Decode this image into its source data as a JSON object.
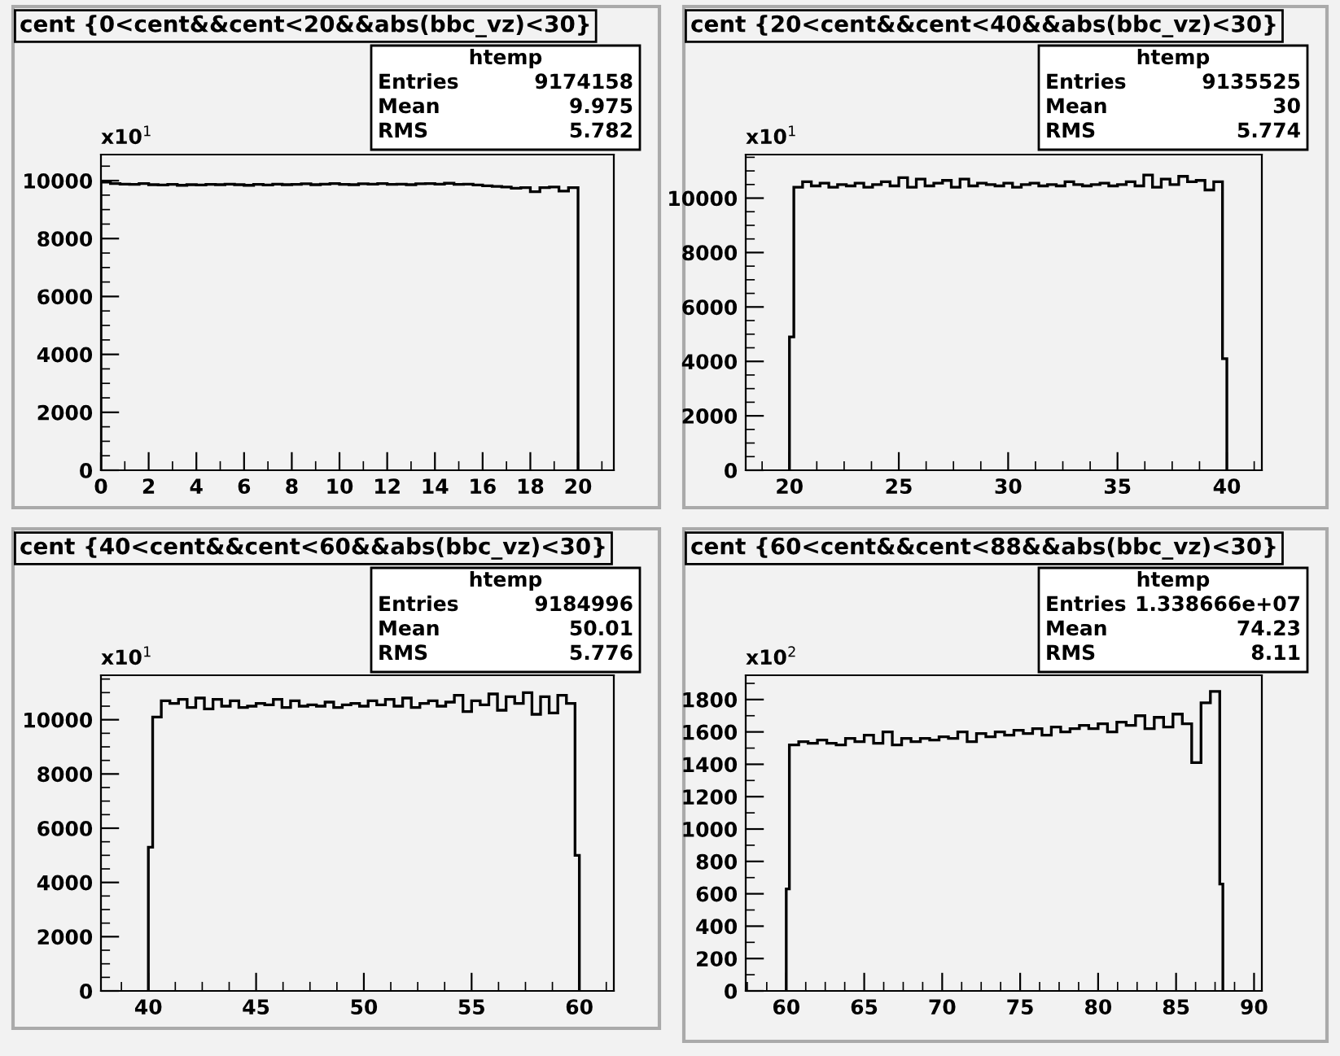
{
  "chart_data": [
    {
      "type": "histogram",
      "title": "cent {0<cent&&cent<20&&abs(bbc_vz)<30}",
      "annotations": [
        "x10$^{1}$",
        "htemp",
        "Entries 9174158",
        "Mean 9.975",
        "RMS 5.782"
      ],
      "color": "#000000",
      "bins": [
        0,
        0.4,
        0.8,
        1.2,
        1.6,
        2,
        2.4,
        2.8,
        3.2,
        3.6,
        4,
        4.4,
        4.8,
        5.2,
        5.6,
        6,
        6.4,
        6.8,
        7.2,
        7.6,
        8,
        8.4,
        8.8,
        9.2,
        9.6,
        10,
        10.4,
        10.8,
        11.2,
        11.6,
        12,
        12.4,
        12.8,
        13.2,
        13.6,
        14,
        14.4,
        14.8,
        15.2,
        15.6,
        16,
        16.4,
        16.8,
        17.2,
        17.6,
        18,
        18.4,
        18.8,
        19.2,
        19.6,
        20
      ],
      "values": [
        9950,
        9900,
        9880,
        9870,
        9900,
        9860,
        9850,
        9870,
        9840,
        9860,
        9850,
        9870,
        9860,
        9880,
        9860,
        9840,
        9870,
        9850,
        9880,
        9860,
        9870,
        9890,
        9860,
        9880,
        9900,
        9870,
        9860,
        9890,
        9880,
        9900,
        9870,
        9880,
        9860,
        9890,
        9900,
        9880,
        9910,
        9870,
        9880,
        9850,
        9820,
        9800,
        9780,
        9740,
        9760,
        9620,
        9760,
        9780,
        9640,
        9760
      ],
      "xlim": [
        0,
        21.5
      ],
      "ylim": [
        0,
        10900
      ],
      "xticks": [
        0,
        2,
        4,
        6,
        8,
        10,
        12,
        14,
        16,
        18,
        20
      ],
      "yticks": [
        0,
        2000,
        4000,
        6000,
        8000,
        10000
      ]
    },
    {
      "type": "histogram",
      "title": "cent {20<cent&&cent<40&&abs(bbc_vz)<30}",
      "annotations": [
        "x10$^{1}$",
        "htemp",
        "Entries 9135525",
        "Mean 30",
        "RMS 5.774"
      ],
      "color": "#000000",
      "bins": [
        20,
        20.2,
        20.6,
        21.0,
        21.4,
        21.8,
        22.2,
        22.6,
        23.0,
        23.4,
        23.8,
        24.2,
        24.6,
        25.0,
        25.4,
        25.8,
        26.2,
        26.6,
        27.0,
        27.4,
        27.8,
        28.2,
        28.6,
        29.0,
        29.4,
        29.8,
        30.2,
        30.6,
        31.0,
        31.4,
        31.8,
        32.2,
        32.6,
        33.0,
        33.4,
        33.8,
        34.2,
        34.6,
        35.0,
        35.4,
        35.8,
        36.2,
        36.6,
        37.0,
        37.4,
        37.8,
        38.2,
        38.6,
        39.0,
        39.4,
        39.8,
        40
      ],
      "values": [
        4900,
        10400,
        10600,
        10450,
        10550,
        10400,
        10500,
        10450,
        10550,
        10400,
        10500,
        10600,
        10450,
        10750,
        10400,
        10700,
        10450,
        10550,
        10650,
        10400,
        10700,
        10450,
        10550,
        10500,
        10450,
        10550,
        10400,
        10500,
        10550,
        10450,
        10500,
        10450,
        10600,
        10500,
        10450,
        10500,
        10550,
        10450,
        10500,
        10600,
        10450,
        10850,
        10400,
        10700,
        10500,
        10800,
        10600,
        10650,
        10300,
        10600,
        4100
      ],
      "xlim": [
        18,
        41.6
      ],
      "ylim": [
        0,
        11600
      ],
      "xticks": [
        20,
        25,
        30,
        35,
        40
      ],
      "yticks": [
        0,
        2000,
        4000,
        6000,
        8000,
        10000
      ]
    },
    {
      "type": "histogram",
      "title": "cent {40<cent&&cent<60&&abs(bbc_vz)<30}",
      "annotations": [
        "x10$^{1}$",
        "htemp",
        "Entries 9184996",
        "Mean 50.01",
        "RMS 5.776"
      ],
      "color": "#000000",
      "bins": [
        40,
        40.2,
        40.6,
        41.0,
        41.4,
        41.8,
        42.2,
        42.6,
        43.0,
        43.4,
        43.8,
        44.2,
        44.6,
        45.0,
        45.4,
        45.8,
        46.2,
        46.6,
        47.0,
        47.4,
        47.8,
        48.2,
        48.6,
        49.0,
        49.4,
        49.8,
        50.2,
        50.6,
        51.0,
        51.4,
        51.8,
        52.2,
        52.6,
        53.0,
        53.4,
        53.8,
        54.2,
        54.6,
        55.0,
        55.4,
        55.8,
        56.2,
        56.6,
        57.0,
        57.4,
        57.8,
        58.2,
        58.6,
        59.0,
        59.4,
        59.8,
        60
      ],
      "values": [
        5300,
        10100,
        10700,
        10600,
        10750,
        10450,
        10800,
        10400,
        10750,
        10500,
        10700,
        10450,
        10500,
        10600,
        10550,
        10750,
        10450,
        10700,
        10500,
        10550,
        10500,
        10650,
        10450,
        10550,
        10600,
        10500,
        10700,
        10550,
        10750,
        10500,
        10800,
        10450,
        10600,
        10700,
        10500,
        10650,
        10900,
        10300,
        10700,
        10550,
        10950,
        10350,
        10850,
        10600,
        11000,
        10200,
        10850,
        10250,
        10900,
        10600,
        5000
      ],
      "xlim": [
        37.8,
        61.6
      ],
      "ylim": [
        0,
        11640
      ],
      "xticks": [
        40,
        45,
        50,
        55,
        60
      ],
      "yticks": [
        0,
        2000,
        4000,
        6000,
        8000,
        10000
      ]
    },
    {
      "type": "histogram",
      "title": "cent {60<cent&&cent<88&&abs(bbc_vz)<30}",
      "annotations": [
        "x10$^{2}$",
        "htemp",
        "Entries 1.338666e+07",
        "Mean 74.23",
        "RMS 8.11"
      ],
      "color": "#000000",
      "bins": [
        60,
        60.2,
        60.8,
        61.4,
        62.0,
        62.6,
        63.2,
        63.8,
        64.4,
        65.0,
        65.6,
        66.2,
        66.8,
        67.4,
        68.0,
        68.6,
        69.2,
        69.8,
        70.4,
        71.0,
        71.6,
        72.2,
        72.8,
        73.4,
        74.0,
        74.6,
        75.2,
        75.8,
        76.4,
        77.0,
        77.6,
        78.2,
        78.8,
        79.4,
        80.0,
        80.6,
        81.2,
        81.8,
        82.4,
        83.0,
        83.6,
        84.2,
        84.8,
        85.4,
        86.0,
        86.6,
        87.2,
        87.8,
        88
      ],
      "values": [
        630,
        1520,
        1540,
        1530,
        1550,
        1530,
        1520,
        1560,
        1540,
        1580,
        1530,
        1600,
        1520,
        1560,
        1540,
        1560,
        1550,
        1570,
        1560,
        1600,
        1540,
        1590,
        1570,
        1600,
        1580,
        1610,
        1590,
        1620,
        1580,
        1630,
        1600,
        1620,
        1640,
        1620,
        1650,
        1600,
        1660,
        1640,
        1700,
        1620,
        1690,
        1630,
        1710,
        1650,
        1410,
        1780,
        1850,
        660
      ],
      "xlim": [
        57.4,
        90.5
      ],
      "ylim": [
        0,
        1950
      ],
      "xticks": [
        60,
        65,
        70,
        75,
        80,
        85,
        90
      ],
      "yticks": [
        0,
        200,
        400,
        600,
        800,
        1000,
        1200,
        1400,
        1600,
        1800
      ]
    }
  ]
}
